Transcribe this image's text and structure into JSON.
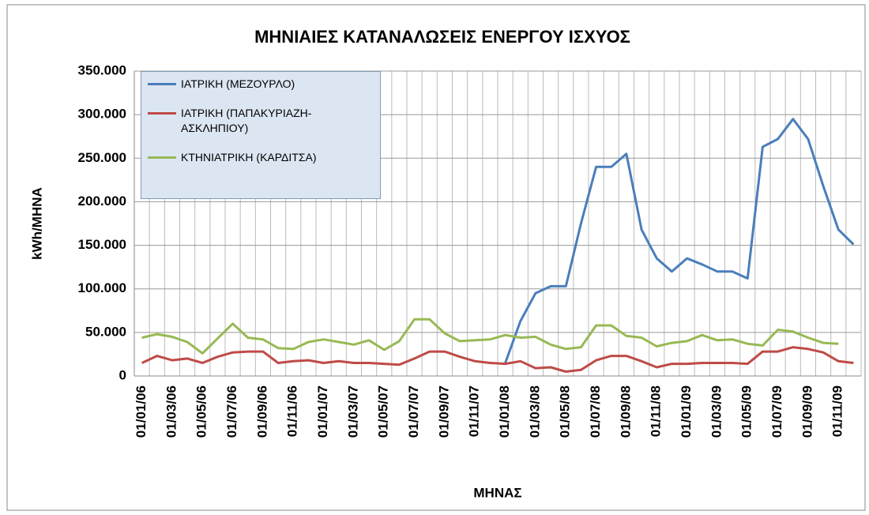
{
  "chart_data": {
    "type": "line",
    "title": "ΜΗΝΙΑΙΕΣ ΚΑΤΑΝΑΛΩΣΕΙΣ ΕΝΕΡΓΟΥ ΙΣΧΥΟΣ",
    "x_label": "ΜΗΝΑΣ",
    "y_label": "kWh/ΜΗΝΑ",
    "categories": [
      "01/01/06",
      null,
      "01/03/06",
      null,
      "01/05/06",
      null,
      "01/07/06",
      null,
      "01/09/06",
      null,
      "01/11/06",
      null,
      "01/01/07",
      null,
      "01/03/07",
      null,
      "01/05/07",
      null,
      "01/07/07",
      null,
      "01/09/07",
      null,
      "01/11/07",
      null,
      "01/01/08",
      null,
      "01/03/08",
      null,
      "01/05/08",
      null,
      "01/07/08",
      null,
      "01/09/08",
      null,
      "01/11/08",
      null,
      "01/01/09",
      null,
      "01/03/09",
      null,
      "01/05/09",
      null,
      "01/07/09",
      null,
      "01/09/09",
      null,
      "01/11/09",
      null
    ],
    "series": [
      {
        "name": "ΙΑΤΡΙΚΗ (ΜΕΖΟΥΡΛΟ)",
        "color": "#4a7ebb",
        "values": [
          null,
          null,
          null,
          null,
          null,
          null,
          null,
          null,
          null,
          null,
          null,
          null,
          null,
          null,
          null,
          null,
          null,
          null,
          null,
          null,
          null,
          null,
          null,
          null,
          15000,
          63000,
          95000,
          103000,
          103000,
          175000,
          240000,
          240000,
          255000,
          168000,
          135000,
          120000,
          135000,
          128000,
          120000,
          120000,
          112000,
          263000,
          272000,
          295000,
          272000,
          218000,
          168000,
          151000
        ]
      },
      {
        "name": "ΙΑΤΡΙΚΗ (ΠΑΠΑΚΥΡΙΑΖΗ-ΑΣΚΛΗΠΙΟΥ)",
        "color": "#be4b48",
        "values": [
          15000,
          23000,
          18000,
          20000,
          15000,
          22000,
          27000,
          28000,
          28000,
          15000,
          17000,
          18000,
          15000,
          17000,
          15000,
          15000,
          14000,
          13000,
          20000,
          28000,
          28000,
          22000,
          17000,
          15000,
          14000,
          17000,
          9000,
          10000,
          5000,
          7000,
          18000,
          23000,
          23000,
          17000,
          10000,
          14000,
          14000,
          15000,
          15000,
          15000,
          14000,
          28000,
          28000,
          33000,
          31000,
          27000,
          17000,
          15000
        ]
      },
      {
        "name": "ΚΤΗΝΙΑΤΡΙΚΗ (ΚΑΡΔΙΤΣΑ)",
        "color": "#98b954",
        "values": [
          44000,
          48000,
          45000,
          39000,
          26000,
          43000,
          60000,
          44000,
          42000,
          32000,
          31000,
          39000,
          42000,
          39000,
          36000,
          41000,
          30000,
          40000,
          65000,
          65000,
          49000,
          40000,
          41000,
          42000,
          47000,
          44000,
          45000,
          36000,
          31000,
          33000,
          58000,
          58000,
          46000,
          44000,
          34000,
          38000,
          40000,
          47000,
          41000,
          42000,
          37000,
          35000,
          53000,
          51000,
          44000,
          38000,
          37000,
          null
        ]
      }
    ],
    "ylim": [
      0,
      350000
    ],
    "yticks": [
      0,
      {
        "value": 50000,
        "label": "50.000"
      },
      {
        "value": 100000,
        "label": "100.000"
      },
      {
        "value": 150000,
        "label": "150.000"
      },
      {
        "value": 200000,
        "label": "200.000"
      },
      {
        "value": 250000,
        "label": "250.000"
      },
      {
        "value": 300000,
        "label": "300.000"
      },
      {
        "value": 350000,
        "label": "350.000"
      }
    ],
    "grid": true,
    "legend": "upper left"
  }
}
